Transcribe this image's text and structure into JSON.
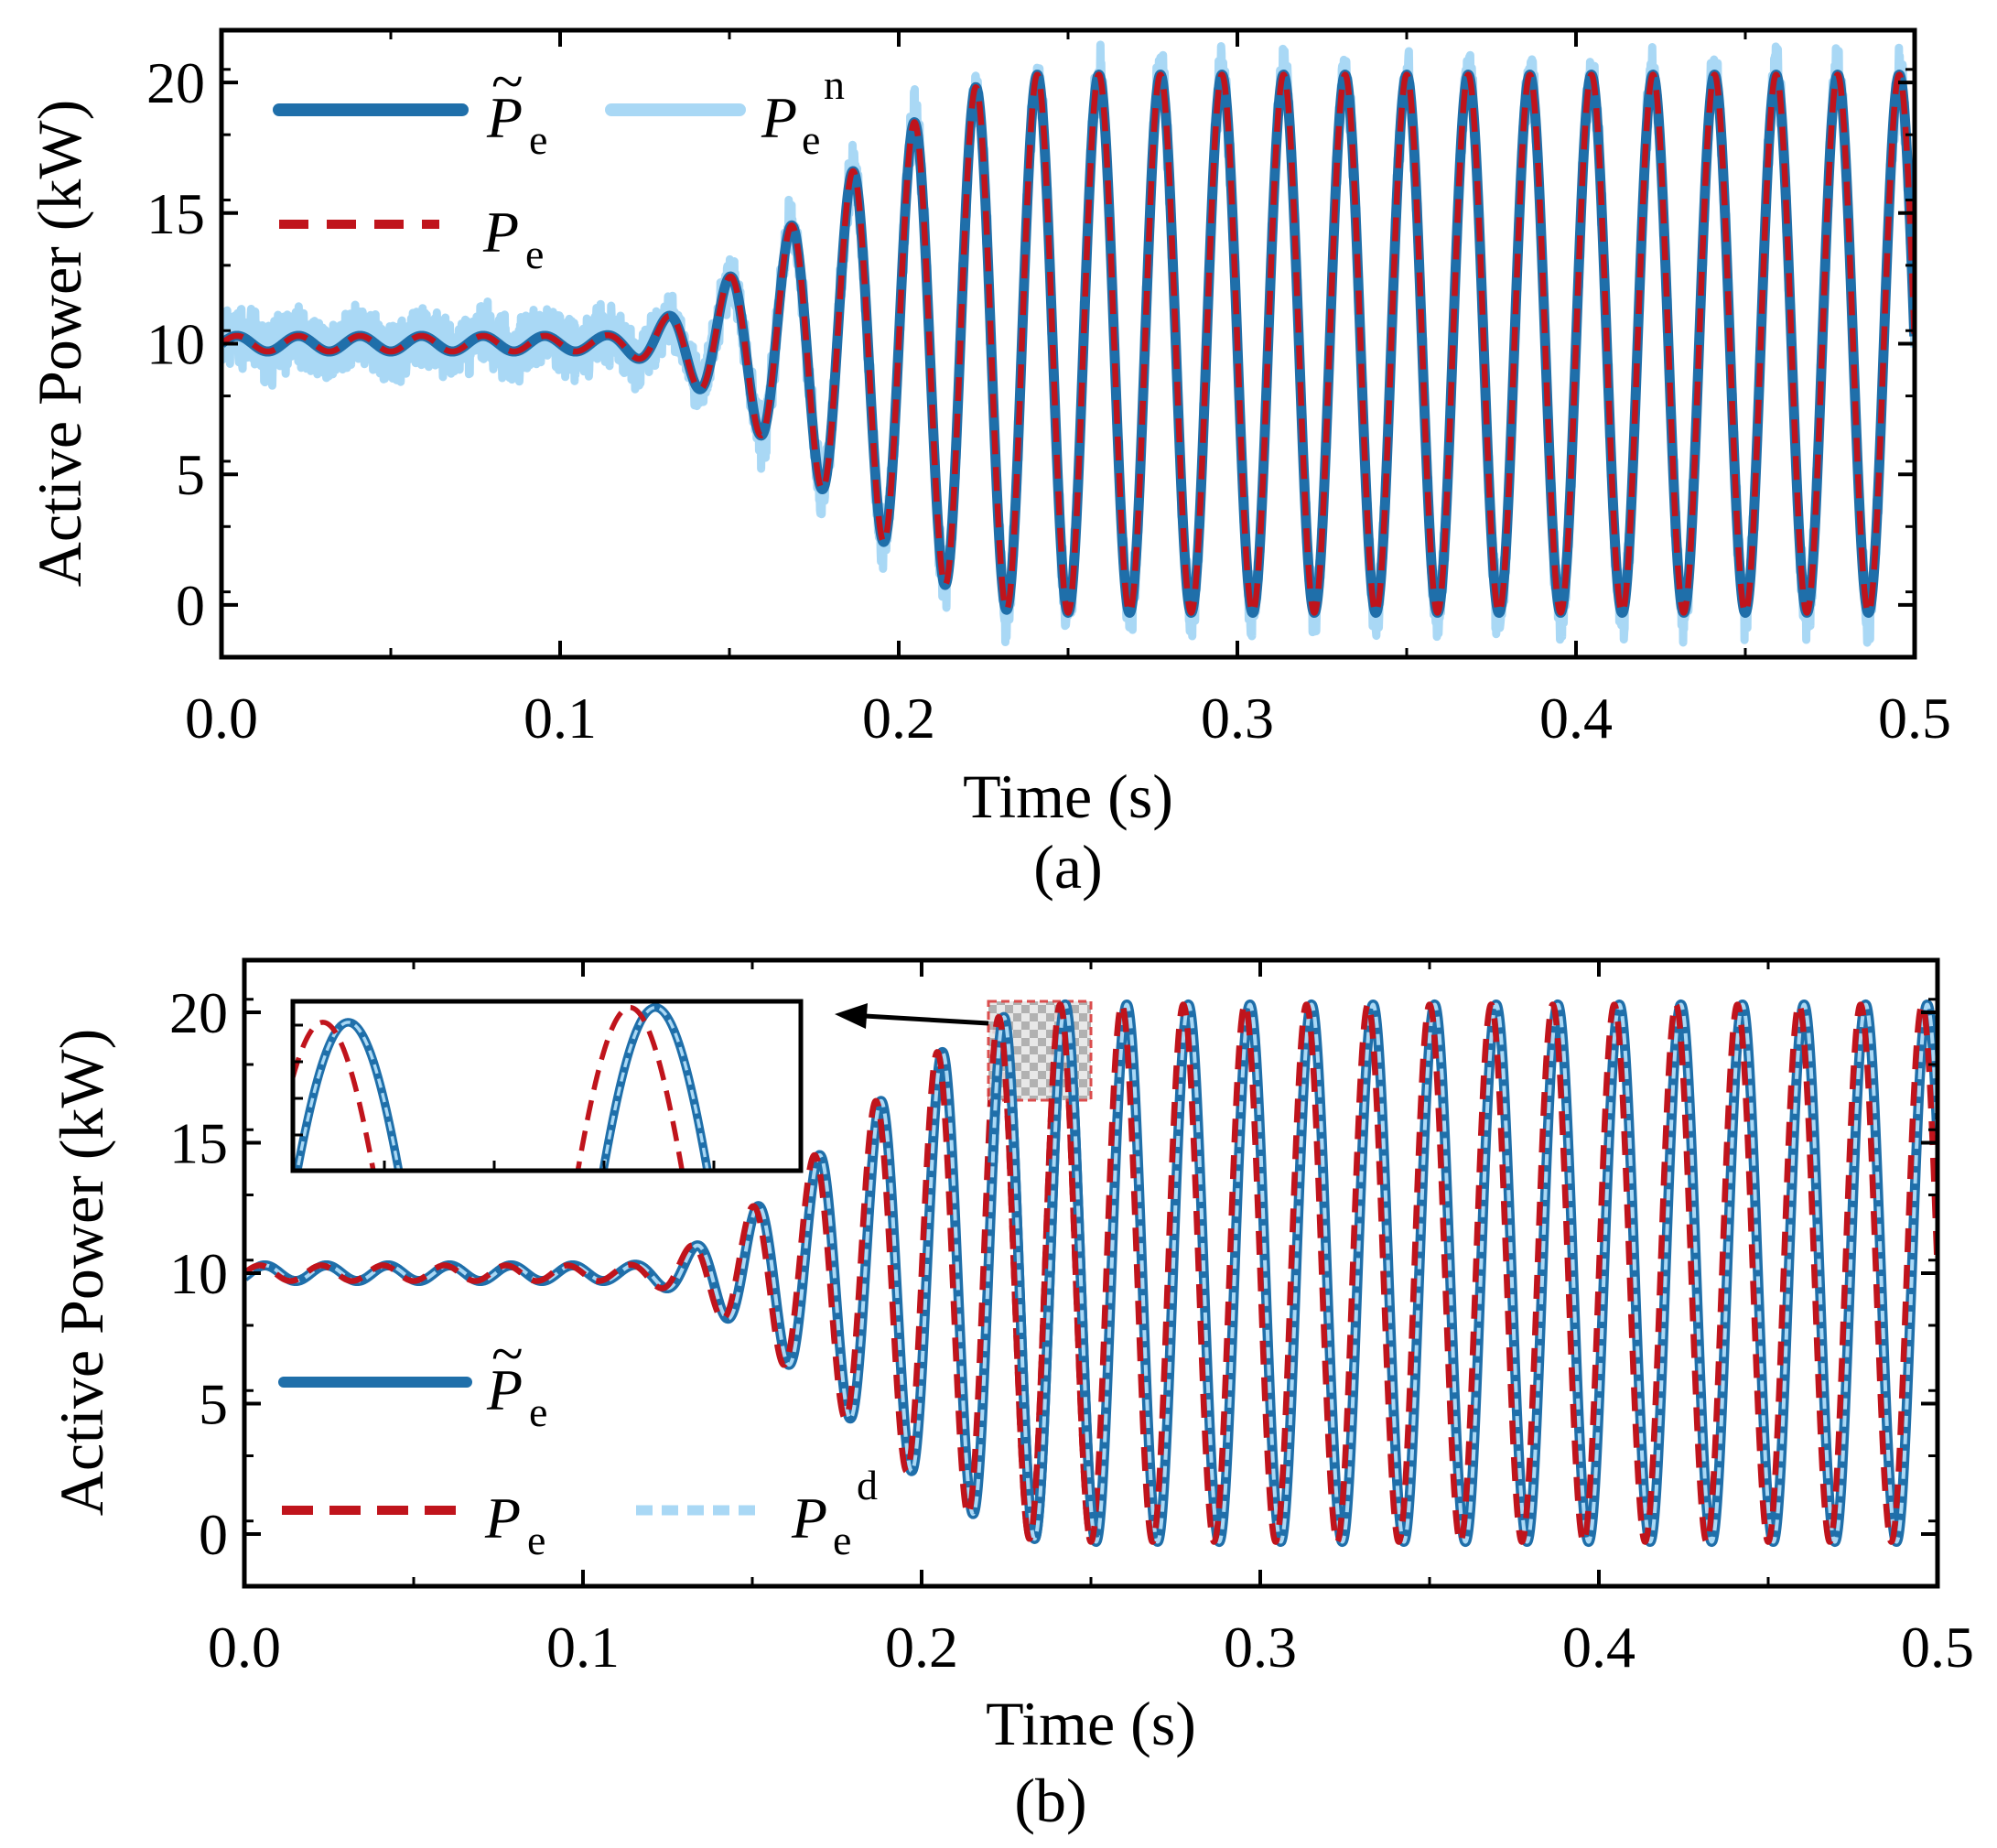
{
  "chart_data": [
    {
      "id": "a",
      "type": "line",
      "panel_label": "(a)",
      "xlabel": "Time (s)",
      "ylabel": "Active Power (kW)",
      "xlim": [
        0,
        0.5
      ],
      "ylim": [
        -2,
        22
      ],
      "xticks": [
        0.0,
        0.1,
        0.2,
        0.3,
        0.4,
        0.5
      ],
      "xtick_labels": [
        "0.0",
        "0.1",
        "0.2",
        "0.3",
        "0.4",
        "0.5"
      ],
      "yticks": [
        0,
        5,
        10,
        15,
        20
      ],
      "ytick_labels": [
        "0",
        "5",
        "10",
        "15",
        "20"
      ],
      "signal": {
        "baseline_kw": 10,
        "frequency_hz": 55,
        "growth_start_s": 0.11,
        "growth_end_s": 0.24,
        "initial_amplitude_kw": 0.3,
        "final_amplitude_kw": 10.3
      },
      "series": [
        {
          "name": "P_e_tilde",
          "label_main": "P",
          "label_sub": "e",
          "label_accent": "~",
          "style": "solid",
          "color": "#1f6faa",
          "noise_kw": 0,
          "phase_lag_s": 0
        },
        {
          "name": "P_e_n",
          "label_main": "P",
          "label_sub": "e",
          "label_sup": "n",
          "style": "solid-noisy",
          "color": "#a9d8f5",
          "noise_kw": 0.9,
          "phase_lag_s": 0
        },
        {
          "name": "P_e",
          "label_main": "P",
          "label_sub": "e",
          "style": "dashed",
          "color": "#c0141c",
          "noise_kw": 0,
          "phase_lag_s": 0
        }
      ],
      "legend_position": "top-left"
    },
    {
      "id": "b",
      "type": "line",
      "panel_label": "(b)",
      "xlabel": "Time (s)",
      "ylabel": "Active Power (kW)",
      "xlim": [
        0,
        0.5
      ],
      "ylim": [
        -2,
        22
      ],
      "xticks": [
        0.0,
        0.1,
        0.2,
        0.3,
        0.4,
        0.5
      ],
      "xtick_labels": [
        "0.0",
        "0.1",
        "0.2",
        "0.3",
        "0.4",
        "0.5"
      ],
      "yticks": [
        0,
        5,
        10,
        15,
        20
      ],
      "ytick_labels": [
        "0",
        "5",
        "10",
        "15",
        "20"
      ],
      "signal": {
        "baseline_kw": 10,
        "frequency_hz": 55,
        "growth_start_s": 0.11,
        "growth_end_s": 0.24,
        "initial_amplitude_kw": 0.3,
        "final_amplitude_kw": 10.3
      },
      "series": [
        {
          "name": "P_e_tilde",
          "label_main": "P",
          "label_sub": "e",
          "label_accent": "~",
          "style": "solid",
          "color": "#1f6faa",
          "phase_lag_s": 0.0015
        },
        {
          "name": "P_e",
          "label_main": "P",
          "label_sub": "e",
          "style": "dashed",
          "color": "#c0141c",
          "phase_lag_s": 0
        },
        {
          "name": "P_e_d",
          "label_main": "P",
          "label_sub": "e",
          "label_sup": "d",
          "style": "dotted",
          "color": "#a9d8f5",
          "phase_lag_s": 0.0015
        }
      ],
      "legend_position": "bottom-left",
      "inset": {
        "source_xlim": [
          0.221,
          0.251
        ],
        "source_ylim": [
          15,
          20.5
        ],
        "position": "top-left",
        "has_arrow": true
      }
    }
  ]
}
